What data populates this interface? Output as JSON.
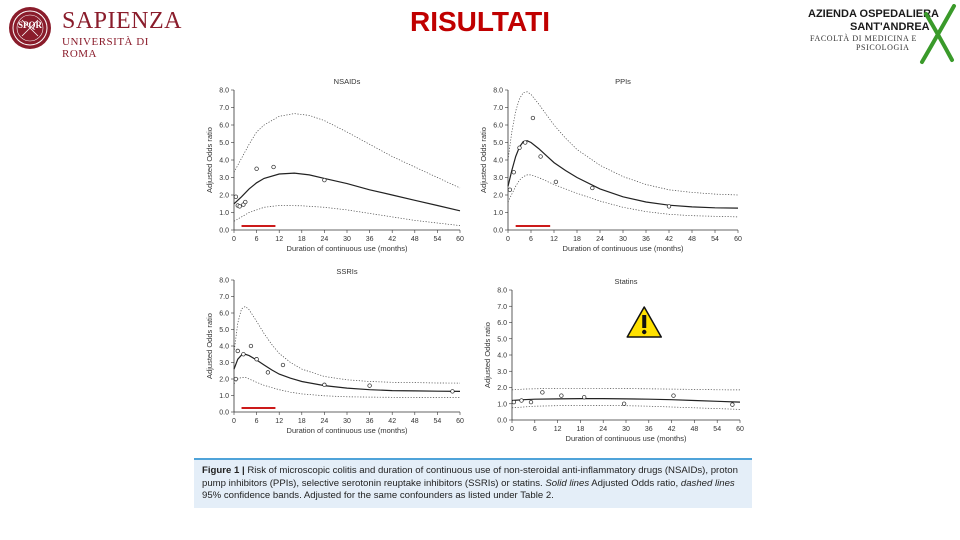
{
  "header": {
    "title": "RISULTATI",
    "left_logo": {
      "name": "SAPIENZA",
      "subtitle": "UNIVERSITÀ DI ROMA",
      "seal_text": "SPQR"
    },
    "right_logo": {
      "line1": "AZIENDA OSPEDALIERA",
      "line2": "SANT'ANDREA",
      "line3": "FACOLTÀ DI MEDICINA E",
      "line4": "PSICOLOGIA"
    }
  },
  "caption": {
    "label": "Figure 1 |",
    "part1": " Risk of microscopic colitis and duration of continuous use of non-steroidal anti-inflammatory drugs (NSAIDs), proton pump inhibitors (PPIs), selective serotonin reuptake inhibitors (SSRIs) or statins. ",
    "solid_label": "Solid lines",
    "part2": " Adjusted Odds ratio, ",
    "dashed_label": "dashed lines",
    "part3": " 95% confidence bands. Adjusted for the same confounders as listed under Table 2."
  },
  "colors": {
    "title": "#c00000",
    "sapienza": "#8a1c2b",
    "red_marker": "#cc1a1a",
    "warning_yellow": "#ffe100",
    "caption_bg": "#e4eef8",
    "caption_border": "#4fa3d9",
    "x_mark": "#3a9a2a"
  },
  "chart_data": [
    {
      "type": "line",
      "title": "NSAIDs",
      "xlabel": "Duration of continuous use (months)",
      "ylabel": "Adjusted Odds ratio",
      "xlim": [
        0,
        60
      ],
      "ylim": [
        0,
        8
      ],
      "xticks": [
        0,
        6,
        12,
        18,
        24,
        30,
        36,
        42,
        48,
        54,
        60
      ],
      "yticks": [
        0,
        1,
        2,
        3,
        4,
        5,
        6,
        7,
        8
      ],
      "grid": false,
      "red_marker_months": [
        2,
        11
      ],
      "series": [
        {
          "name": "Adjusted Odds ratio",
          "style": "solid",
          "x": [
            0,
            2,
            4,
            6,
            8,
            12,
            16,
            20,
            24,
            30,
            36,
            42,
            48,
            54,
            60
          ],
          "y": [
            1.5,
            1.9,
            2.35,
            2.7,
            2.95,
            3.2,
            3.25,
            3.15,
            2.95,
            2.65,
            2.3,
            2.0,
            1.7,
            1.4,
            1.1
          ]
        },
        {
          "name": "95% upper band",
          "style": "dashed",
          "x": [
            0,
            2,
            4,
            6,
            8,
            12,
            16,
            20,
            24,
            30,
            36,
            42,
            48,
            54,
            60
          ],
          "y": [
            3.3,
            4.1,
            4.9,
            5.6,
            6.0,
            6.5,
            6.65,
            6.55,
            6.25,
            5.6,
            4.9,
            4.2,
            3.6,
            3.0,
            2.4
          ]
        },
        {
          "name": "95% lower band",
          "style": "dashed",
          "x": [
            0,
            2,
            4,
            6,
            8,
            12,
            18,
            24,
            30,
            36,
            42,
            48,
            54,
            60
          ],
          "y": [
            0.5,
            0.75,
            1.0,
            1.15,
            1.3,
            1.4,
            1.38,
            1.3,
            1.15,
            0.95,
            0.75,
            0.55,
            0.4,
            0.25
          ]
        }
      ],
      "points": {
        "x": [
          0.5,
          1.0,
          1.5,
          2.5,
          3.0,
          6.0,
          10.5,
          24.0
        ],
        "y": [
          1.9,
          1.4,
          1.35,
          1.45,
          1.6,
          3.5,
          3.6,
          2.85
        ]
      }
    },
    {
      "type": "line",
      "title": "PPIs",
      "xlabel": "Duration of continuous use (months)",
      "ylabel": "Adjusted Odds ratio",
      "xlim": [
        0,
        60
      ],
      "ylim": [
        0,
        8
      ],
      "xticks": [
        0,
        6,
        12,
        18,
        24,
        30,
        36,
        42,
        48,
        54,
        60
      ],
      "yticks": [
        0,
        1,
        2,
        3,
        4,
        5,
        6,
        7,
        8
      ],
      "grid": false,
      "red_marker_months": [
        2,
        11
      ],
      "series": [
        {
          "name": "Adjusted Odds ratio",
          "style": "solid",
          "x": [
            0,
            1,
            2,
            3,
            4,
            5,
            6,
            8,
            10,
            12,
            15,
            18,
            24,
            30,
            36,
            42,
            48,
            54,
            60
          ],
          "y": [
            2.5,
            3.4,
            4.2,
            4.75,
            5.05,
            5.1,
            5.0,
            4.65,
            4.25,
            3.85,
            3.4,
            3.0,
            2.35,
            1.9,
            1.6,
            1.42,
            1.32,
            1.27,
            1.25
          ]
        },
        {
          "name": "95% upper band",
          "style": "dashed",
          "x": [
            0,
            1,
            2,
            3,
            4,
            5,
            6,
            8,
            10,
            12,
            15,
            18,
            24,
            30,
            36,
            42,
            48,
            54,
            60
          ],
          "y": [
            4.0,
            5.6,
            6.8,
            7.5,
            7.85,
            7.9,
            7.75,
            7.2,
            6.6,
            6.0,
            5.25,
            4.6,
            3.7,
            3.05,
            2.6,
            2.3,
            2.15,
            2.05,
            2.0
          ]
        },
        {
          "name": "95% lower band",
          "style": "dashed",
          "x": [
            0,
            1,
            2,
            3,
            4,
            5,
            6,
            8,
            10,
            12,
            15,
            18,
            24,
            30,
            36,
            42,
            48,
            54,
            60
          ],
          "y": [
            1.6,
            2.05,
            2.5,
            2.85,
            3.05,
            3.15,
            3.15,
            3.0,
            2.8,
            2.6,
            2.35,
            2.1,
            1.65,
            1.3,
            1.05,
            0.9,
            0.82,
            0.78,
            0.75
          ]
        }
      ],
      "points": {
        "x": [
          0.5,
          1.5,
          3.0,
          4.5,
          6.5,
          8.5,
          12.5,
          22.0,
          42.0
        ],
        "y": [
          2.3,
          3.3,
          4.7,
          5.0,
          6.4,
          4.2,
          2.75,
          2.4,
          1.35
        ]
      }
    },
    {
      "type": "line",
      "title": "SSRIs",
      "xlabel": "Duration of continuous use (months)",
      "ylabel": "Adjusted Odds ratio",
      "xlim": [
        0,
        60
      ],
      "ylim": [
        0,
        8
      ],
      "xticks": [
        0,
        6,
        12,
        18,
        24,
        30,
        36,
        42,
        48,
        54,
        60
      ],
      "yticks": [
        0,
        1,
        2,
        3,
        4,
        5,
        6,
        7,
        8
      ],
      "grid": false,
      "red_marker_months": [
        2,
        11
      ],
      "series": [
        {
          "name": "Adjusted Odds ratio",
          "style": "solid",
          "x": [
            0,
            1,
            2,
            3,
            4,
            6,
            8,
            10,
            12,
            15,
            18,
            24,
            30,
            36,
            42,
            48,
            54,
            60
          ],
          "y": [
            2.6,
            3.2,
            3.45,
            3.5,
            3.42,
            3.15,
            2.85,
            2.55,
            2.3,
            2.05,
            1.85,
            1.6,
            1.45,
            1.35,
            1.3,
            1.28,
            1.26,
            1.25
          ]
        },
        {
          "name": "95% upper band",
          "style": "dashed",
          "x": [
            0,
            1,
            2,
            3,
            4,
            6,
            8,
            10,
            12,
            15,
            18,
            24,
            30,
            36,
            42,
            48,
            54,
            60
          ],
          "y": [
            3.6,
            5.4,
            6.25,
            6.4,
            6.2,
            5.5,
            4.75,
            4.1,
            3.55,
            3.0,
            2.6,
            2.15,
            1.95,
            1.85,
            1.8,
            1.78,
            1.76,
            1.75
          ]
        },
        {
          "name": "95% lower band",
          "style": "dashed",
          "x": [
            0,
            1,
            2,
            3,
            4,
            6,
            8,
            10,
            12,
            15,
            18,
            24,
            30,
            36,
            42,
            48,
            54,
            60
          ],
          "y": [
            1.7,
            2.0,
            2.1,
            2.1,
            2.0,
            1.8,
            1.62,
            1.48,
            1.35,
            1.2,
            1.1,
            0.98,
            0.92,
            0.9,
            0.89,
            0.88,
            0.88,
            0.88
          ]
        }
      ],
      "points": {
        "x": [
          0.5,
          1.0,
          2.5,
          4.5,
          6.0,
          9.0,
          13.0,
          24.0,
          36.0,
          58.0
        ],
        "y": [
          2.0,
          3.7,
          3.5,
          4.0,
          3.2,
          2.4,
          2.85,
          1.65,
          1.6,
          1.25
        ]
      }
    },
    {
      "type": "line",
      "title": "Statins",
      "xlabel": "Duration of continuous use (months)",
      "ylabel": "Adjusted Odds ratio",
      "xlim": [
        0,
        60
      ],
      "ylim": [
        0,
        8
      ],
      "xticks": [
        0,
        6,
        12,
        18,
        24,
        30,
        36,
        42,
        48,
        54,
        60
      ],
      "yticks": [
        0,
        1,
        2,
        3,
        4,
        5,
        6,
        7,
        8
      ],
      "grid": false,
      "warning_icon": true,
      "series": [
        {
          "name": "Adjusted Odds ratio",
          "style": "solid",
          "x": [
            0,
            3,
            6,
            12,
            18,
            24,
            30,
            36,
            42,
            48,
            54,
            60
          ],
          "y": [
            1.2,
            1.25,
            1.28,
            1.3,
            1.32,
            1.32,
            1.3,
            1.28,
            1.25,
            1.2,
            1.15,
            1.1
          ]
        },
        {
          "name": "95% upper band",
          "style": "dashed",
          "x": [
            0,
            3,
            6,
            12,
            18,
            24,
            30,
            36,
            42,
            48,
            54,
            60
          ],
          "y": [
            1.85,
            1.9,
            1.92,
            1.95,
            1.95,
            1.95,
            1.93,
            1.92,
            1.9,
            1.88,
            1.86,
            1.85
          ]
        },
        {
          "name": "95% lower band",
          "style": "dashed",
          "x": [
            0,
            3,
            6,
            12,
            18,
            24,
            30,
            36,
            42,
            48,
            54,
            60
          ],
          "y": [
            0.75,
            0.8,
            0.85,
            0.88,
            0.9,
            0.9,
            0.88,
            0.85,
            0.8,
            0.75,
            0.7,
            0.65
          ]
        }
      ],
      "points": {
        "x": [
          0.5,
          2.5,
          5.0,
          8.0,
          13.0,
          19.0,
          29.5,
          42.5,
          58.0
        ],
        "y": [
          1.1,
          1.2,
          1.1,
          1.7,
          1.5,
          1.4,
          1.0,
          1.5,
          0.95
        ]
      }
    }
  ]
}
